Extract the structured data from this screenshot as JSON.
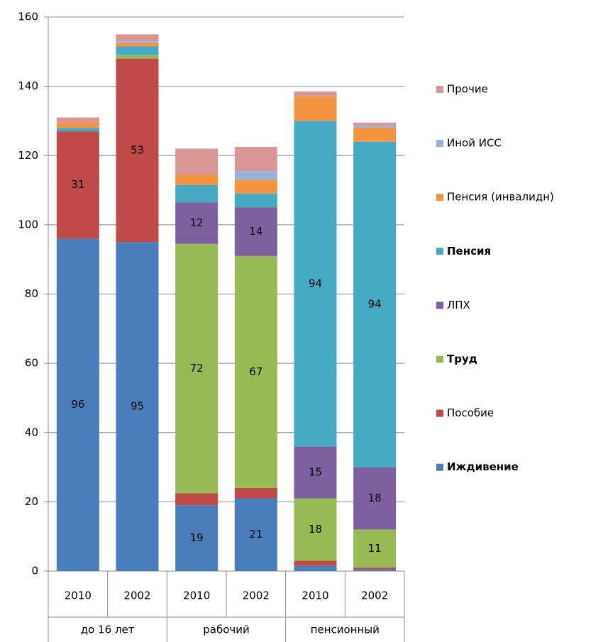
{
  "chart_data": {
    "type": "stacked-bar",
    "categories": [
      "2010",
      "2002",
      "2010",
      "2002",
      "2010",
      "2002"
    ],
    "group_labels": [
      "до 16 лет",
      "рабочий",
      "пенсионный"
    ],
    "ylim": [
      0,
      160
    ],
    "yticks": [
      0,
      20,
      40,
      60,
      80,
      100,
      120,
      140,
      160
    ],
    "grid": true,
    "legend": "right",
    "series": [
      {
        "name": "Иждивение",
        "color": "#4a7ebb",
        "bold": true,
        "values": [
          96,
          95,
          19,
          21,
          1.5,
          0.5
        ]
      },
      {
        "name": "Пособие",
        "color": "#be4b48",
        "bold": false,
        "values": [
          31,
          53,
          3.5,
          3,
          1.5,
          0.5
        ]
      },
      {
        "name": "Труд",
        "color": "#98b954",
        "bold": true,
        "values": [
          0,
          1,
          72,
          67,
          18,
          11
        ]
      },
      {
        "name": "ЛПХ",
        "color": "#7d60a0",
        "bold": false,
        "values": [
          0,
          0,
          12,
          14,
          15,
          18
        ]
      },
      {
        "name": "Пенсия",
        "color": "#46aac5",
        "bold": true,
        "values": [
          1,
          2.5,
          5,
          4,
          94,
          94
        ]
      },
      {
        "name": "Пенсия (инвалидн)",
        "color": "#f39441",
        "bold": false,
        "values": [
          1.5,
          1,
          3,
          4,
          7,
          4
        ]
      },
      {
        "name": "Иной ИСС",
        "color": "#95b3d7",
        "bold": false,
        "values": [
          0,
          0.5,
          0,
          2.5,
          0,
          0.5
        ]
      },
      {
        "name": "Прочие",
        "color": "#d99694",
        "bold": false,
        "values": [
          1.5,
          2,
          7.5,
          7,
          1.5,
          1
        ]
      }
    ]
  }
}
